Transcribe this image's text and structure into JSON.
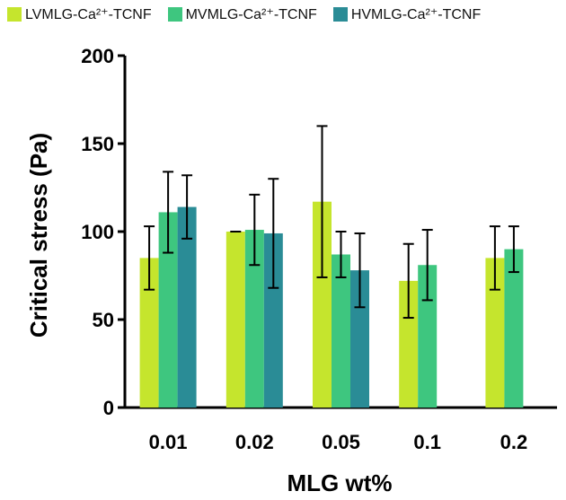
{
  "chart_data": {
    "type": "bar",
    "title": "",
    "xlabel": "MLG wt%",
    "ylabel": "Critical stress (Pa)",
    "ylim": [
      0,
      200
    ],
    "yticks": [
      0,
      50,
      100,
      150,
      200
    ],
    "categories": [
      "0.01",
      "0.02",
      "0.05",
      "0.1",
      "0.2"
    ],
    "legend_position": "top",
    "series": [
      {
        "name": "LVMLG-Ca²⁺-TCNF",
        "color": "#c5e52d",
        "values": [
          85,
          100,
          117,
          72,
          85
        ],
        "errors": [
          18,
          0,
          43,
          21,
          18
        ]
      },
      {
        "name": "MVMLG-Ca²⁺-TCNF",
        "color": "#3ec67f",
        "values": [
          111,
          101,
          87,
          81,
          90
        ],
        "errors": [
          23,
          20,
          13,
          20,
          13
        ]
      },
      {
        "name": "HVMLG-Ca²⁺-TCNF",
        "color": "#2a8c96",
        "values": [
          114,
          99,
          78,
          null,
          null
        ],
        "errors": [
          18,
          31,
          21,
          null,
          null
        ]
      }
    ]
  }
}
